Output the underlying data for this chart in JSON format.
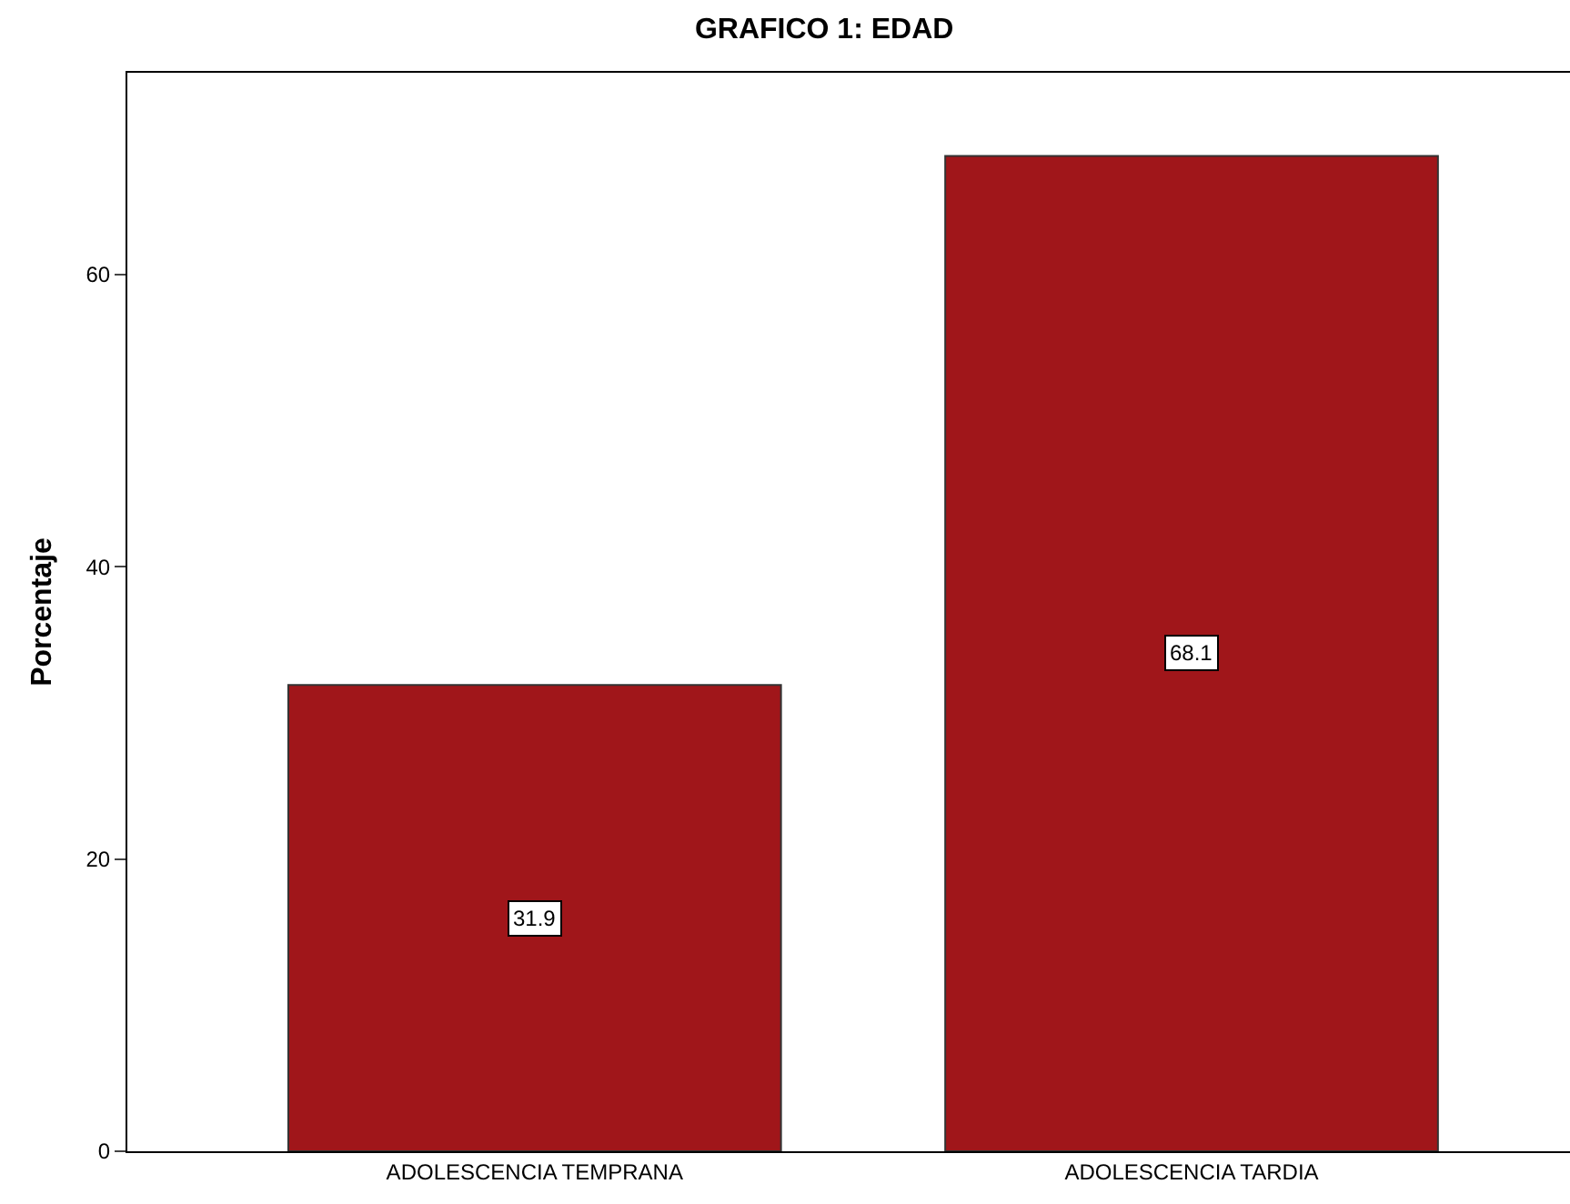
{
  "chart_data": {
    "type": "bar",
    "title": "GRAFICO 1: EDAD",
    "ylabel": "Porcentaje",
    "categories": [
      "ADOLESCENCIA TEMPRANA",
      "ADOLESCENCIA TARDIA"
    ],
    "values": [
      31.9,
      68.1
    ],
    "color": "#a0161a",
    "ylim": [
      0,
      73.8
    ],
    "yticks": [
      0,
      20,
      40,
      60
    ],
    "grid": false,
    "legend": false,
    "data_labels": true
  }
}
